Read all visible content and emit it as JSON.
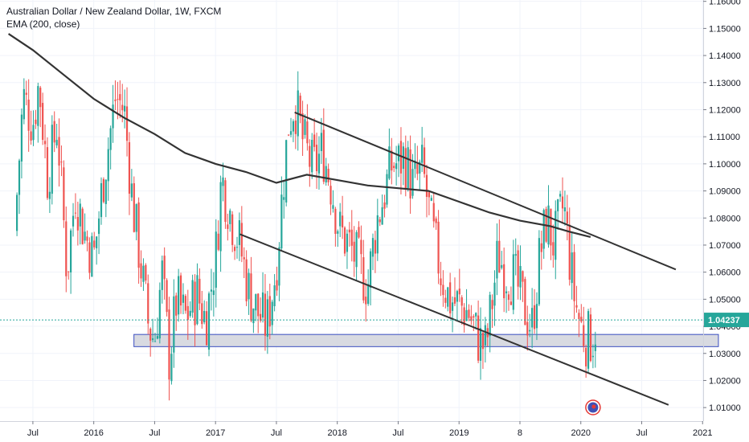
{
  "header": {
    "title": "Australian Dollar / New Zealand Dollar, 1W, FXCM",
    "indicator": "EMA (200, close)"
  },
  "colors": {
    "up": "#26a69a",
    "down": "#ef5350",
    "ema": "#333333",
    "trendline": "#333333",
    "zone_fill": "#d1d4dc",
    "zone_border": "#3a4dc0",
    "last_price": "#26a69a",
    "axis_line": "#d1d4dc",
    "grid": "#f0f3fa"
  },
  "chart_data": {
    "type": "candlestick",
    "y_axis": {
      "min": 1.005,
      "max": 1.1605,
      "ticks": [
        "1.16000",
        "1.15000",
        "1.14000",
        "1.13000",
        "1.12000",
        "1.11000",
        "1.10000",
        "1.09000",
        "1.08000",
        "1.07000",
        "1.06000",
        "1.05000",
        "1.04000",
        "1.03000",
        "1.02000",
        "1.01000"
      ]
    },
    "x_axis": {
      "ticks": [
        {
          "label": "Jul",
          "t": 2015.5
        },
        {
          "label": "2016",
          "t": 2016.0
        },
        {
          "label": "Jul",
          "t": 2016.5
        },
        {
          "label": "2017",
          "t": 2017.0
        },
        {
          "label": "Jul",
          "t": 2017.5
        },
        {
          "label": "2018",
          "t": 2018.0
        },
        {
          "label": "Jul",
          "t": 2018.5
        },
        {
          "label": "2019",
          "t": 2019.0
        },
        {
          "label": "8",
          "t": 2019.5
        },
        {
          "label": "2020",
          "t": 2020.0
        },
        {
          "label": "Jul",
          "t": 2020.5
        },
        {
          "label": "2021",
          "t": 2021.0
        }
      ]
    },
    "last_price": {
      "value": 1.04237,
      "label": "1.04237"
    },
    "price_path": [
      [
        2015.35,
        1.075
      ],
      [
        2015.42,
        1.125
      ],
      [
        2015.5,
        1.115
      ],
      [
        2015.55,
        1.13
      ],
      [
        2015.62,
        1.095
      ],
      [
        2015.7,
        1.115
      ],
      [
        2015.78,
        1.06
      ],
      [
        2015.85,
        1.09
      ],
      [
        2015.92,
        1.075
      ],
      [
        2016.0,
        1.065
      ],
      [
        2016.08,
        1.095
      ],
      [
        2016.18,
        1.125
      ],
      [
        2016.25,
        1.12
      ],
      [
        2016.32,
        1.085
      ],
      [
        2016.38,
        1.065
      ],
      [
        2016.45,
        1.04
      ],
      [
        2016.5,
        1.035
      ],
      [
        2016.56,
        1.06
      ],
      [
        2016.62,
        1.028
      ],
      [
        2016.68,
        1.05
      ],
      [
        2016.75,
        1.043
      ],
      [
        2016.85,
        1.052
      ],
      [
        2016.92,
        1.042
      ],
      [
        2017.0,
        1.065
      ],
      [
        2017.05,
        1.095
      ],
      [
        2017.12,
        1.082
      ],
      [
        2017.2,
        1.07
      ],
      [
        2017.28,
        1.052
      ],
      [
        2017.35,
        1.045
      ],
      [
        2017.42,
        1.04
      ],
      [
        2017.5,
        1.062
      ],
      [
        2017.55,
        1.09
      ],
      [
        2017.6,
        1.115
      ],
      [
        2017.65,
        1.123
      ],
      [
        2017.72,
        1.108
      ],
      [
        2017.8,
        1.098
      ],
      [
        2017.88,
        1.105
      ],
      [
        2017.95,
        1.092
      ],
      [
        2018.02,
        1.075
      ],
      [
        2018.1,
        1.07
      ],
      [
        2018.18,
        1.062
      ],
      [
        2018.25,
        1.055
      ],
      [
        2018.32,
        1.078
      ],
      [
        2018.38,
        1.088
      ],
      [
        2018.45,
        1.1
      ],
      [
        2018.5,
        1.1
      ],
      [
        2018.55,
        1.103
      ],
      [
        2018.62,
        1.092
      ],
      [
        2018.7,
        1.098
      ],
      [
        2018.78,
        1.075
      ],
      [
        2018.85,
        1.06
      ],
      [
        2018.92,
        1.05
      ],
      [
        2019.0,
        1.048
      ],
      [
        2019.08,
        1.045
      ],
      [
        2019.16,
        1.035
      ],
      [
        2019.22,
        1.032
      ],
      [
        2019.28,
        1.052
      ],
      [
        2019.32,
        1.067
      ],
      [
        2019.38,
        1.06
      ],
      [
        2019.45,
        1.058
      ],
      [
        2019.5,
        1.052
      ],
      [
        2019.55,
        1.045
      ],
      [
        2019.6,
        1.04
      ],
      [
        2019.66,
        1.065
      ],
      [
        2019.72,
        1.08
      ],
      [
        2019.78,
        1.07
      ],
      [
        2019.82,
        1.078
      ],
      [
        2019.86,
        1.085
      ],
      [
        2019.9,
        1.068
      ],
      [
        2019.95,
        1.05
      ],
      [
        2020.0,
        1.04
      ],
      [
        2020.05,
        1.035
      ],
      [
        2020.1,
        1.036
      ],
      [
        2020.13,
        1.042
      ]
    ],
    "ema_200": [
      [
        2015.3,
        1.148
      ],
      [
        2015.5,
        1.142
      ],
      [
        2015.75,
        1.133
      ],
      [
        2016.0,
        1.124
      ],
      [
        2016.25,
        1.117
      ],
      [
        2016.5,
        1.111
      ],
      [
        2016.75,
        1.104
      ],
      [
        2017.0,
        1.1
      ],
      [
        2017.25,
        1.097
      ],
      [
        2017.5,
        1.093
      ],
      [
        2017.75,
        1.096
      ],
      [
        2018.0,
        1.094
      ],
      [
        2018.25,
        1.092
      ],
      [
        2018.5,
        1.091
      ],
      [
        2018.75,
        1.09
      ],
      [
        2019.0,
        1.086
      ],
      [
        2019.25,
        1.082
      ],
      [
        2019.5,
        1.079
      ],
      [
        2019.75,
        1.077
      ],
      [
        2019.9,
        1.075
      ],
      [
        2020.08,
        1.073
      ]
    ],
    "trendlines": [
      {
        "from": [
          2017.65,
          1.119
        ],
        "to": [
          2020.78,
          1.061
        ]
      },
      {
        "from": [
          2017.2,
          1.074
        ],
        "to": [
          2020.72,
          1.011
        ]
      }
    ],
    "support_zone": {
      "from_t": 2016.33,
      "to_t": 2021.13,
      "low": 1.0325,
      "high": 1.037
    }
  }
}
